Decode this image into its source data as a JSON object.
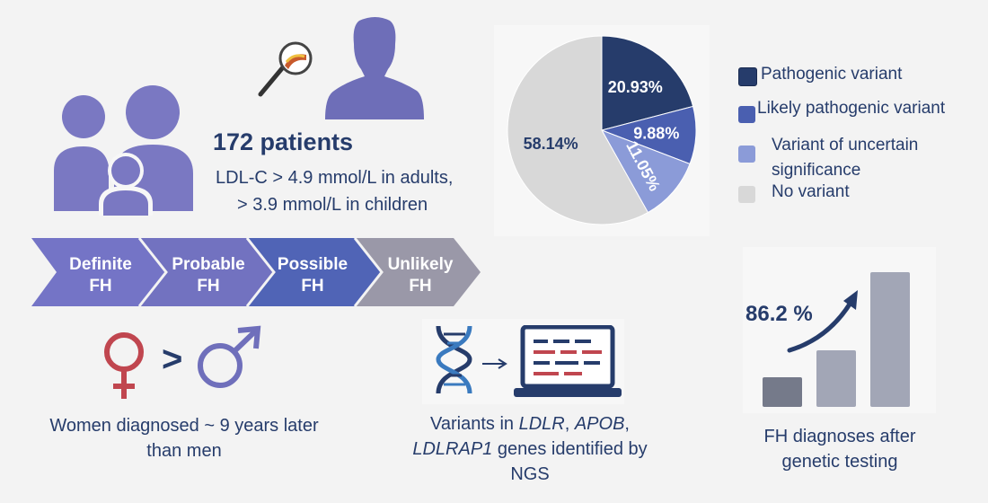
{
  "cohort": {
    "headline": "172 patients",
    "criteria_line1": "LDL-C > 4.9 mmol/L in adults,",
    "criteria_line2": "> 3.9 mmol/L in children"
  },
  "categories": [
    {
      "line1": "Definite",
      "line2": "FH",
      "color": "#7474c6"
    },
    {
      "line1": "Probable",
      "line2": "FH",
      "color": "#7272c0"
    },
    {
      "line1": "Possible",
      "line2": "FH",
      "color": "#5064b6"
    },
    {
      "line1": "Unlikely",
      "line2": "FH",
      "color": "#9a98a8"
    }
  ],
  "sex": {
    "symbol": ">",
    "caption_line1": "Women diagnosed ~ 9 years later",
    "caption_line2": "than men",
    "female_color": "#c0464f",
    "male_color": "#6f6fbb"
  },
  "genetics": {
    "caption_prefix": "Variants in ",
    "gene1": "LDLR",
    "sep1": ", ",
    "gene2": "APOB",
    "sep2": ",",
    "gene3": "LDLRAP1",
    "caption_mid": " genes identified by",
    "caption_end": "NGS"
  },
  "chart_data": [
    {
      "type": "pie",
      "series": [
        {
          "label": "Pathogenic variant",
          "value": 20.93,
          "value_label": "20.93%",
          "color": "#263c6b"
        },
        {
          "label": "Likely pathogenic variant",
          "value": 9.88,
          "value_label": "9.88%",
          "color": "#4a5fb0"
        },
        {
          "label": "Variant of uncertain significance",
          "value": 11.05,
          "value_label": "11.05%",
          "color": "#8b9bd8"
        },
        {
          "label": "No variant",
          "value": 58.14,
          "value_label": "58.14%",
          "color": "#d8d8d8"
        }
      ],
      "legend": {
        "placement": "right",
        "items": [
          {
            "line1": "Pathogenic variant",
            "line2": ""
          },
          {
            "line1": "Likely pathogenic variant",
            "line2": ""
          },
          {
            "line1": "Variant of uncertain",
            "line2": "significance"
          },
          {
            "line1": "No variant",
            "line2": ""
          }
        ]
      }
    },
    {
      "type": "bar",
      "categories": [
        "",
        "",
        ""
      ],
      "values": [
        0.22,
        0.42,
        1.0
      ],
      "colors": [
        "#757a8a",
        "#a2a6b6",
        "#a2a6b6"
      ],
      "annotation": "86.2 %",
      "caption_line1": "FH diagnoses after",
      "caption_line2": "genetic testing"
    }
  ]
}
